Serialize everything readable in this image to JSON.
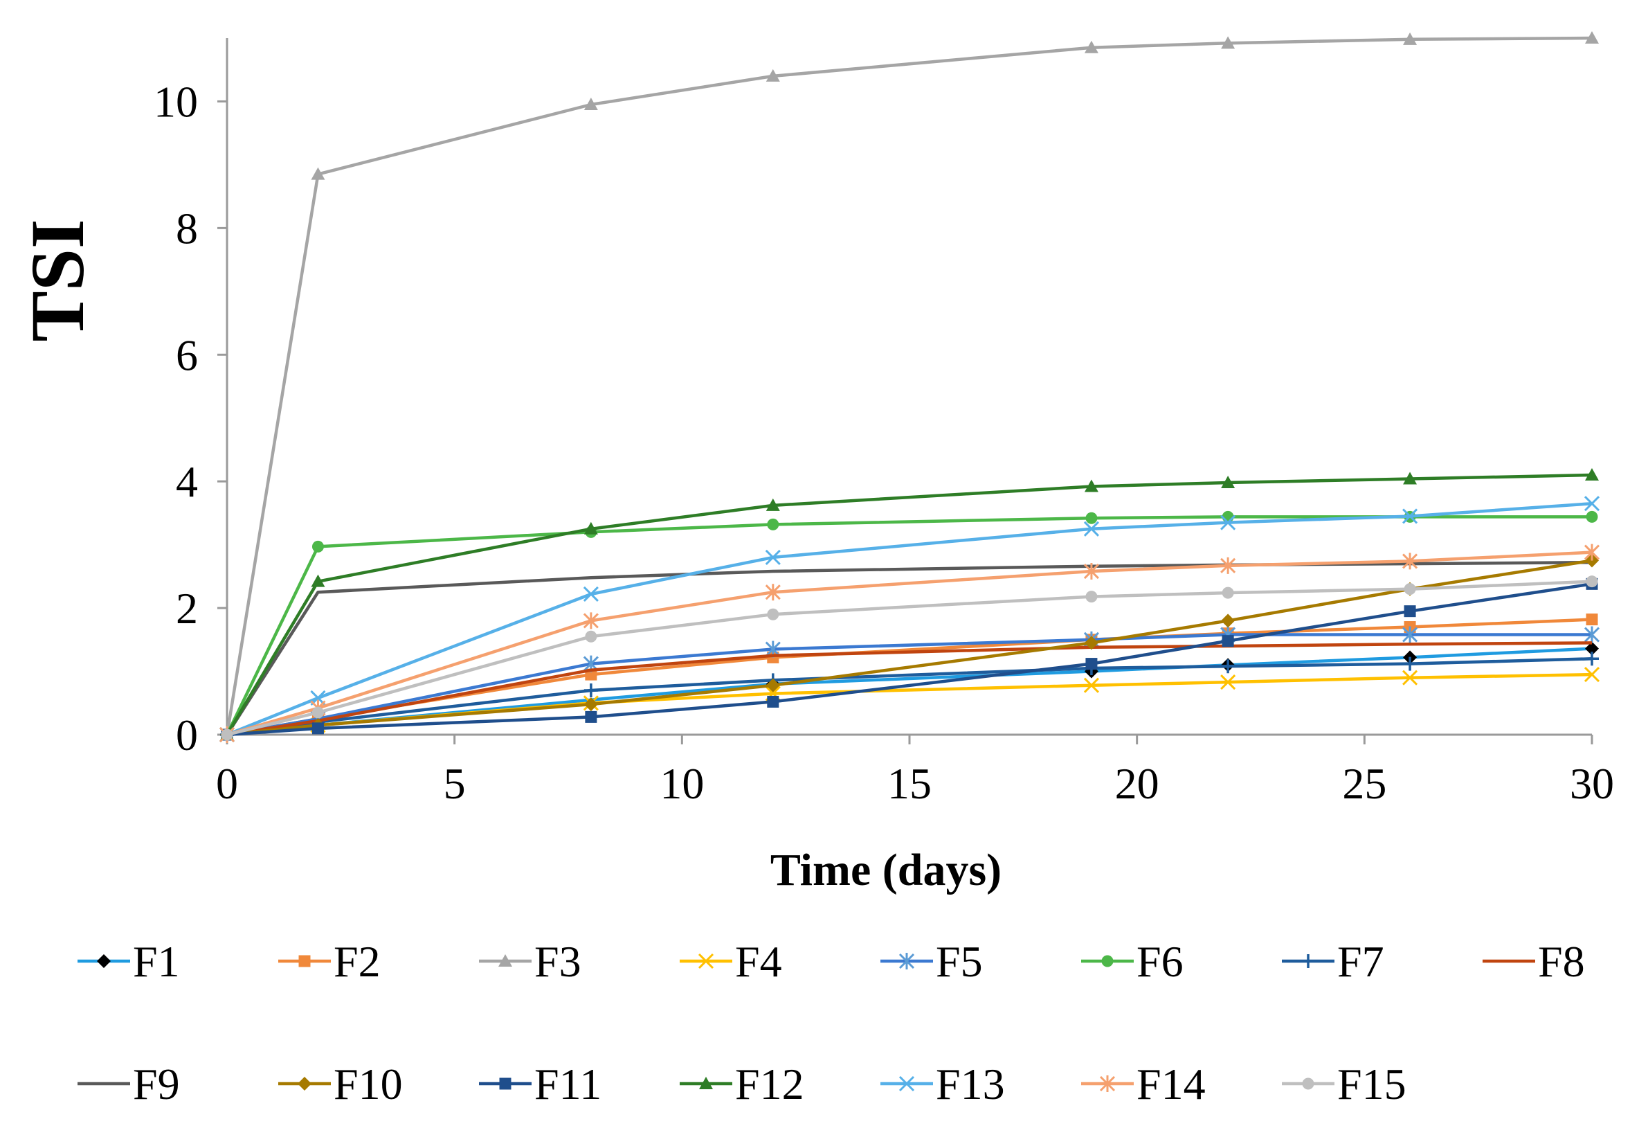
{
  "chart_data": {
    "type": "line",
    "xlabel": "Time (days)",
    "ylabel": "TSI",
    "xlim": [
      0,
      30
    ],
    "ylim": [
      0,
      11
    ],
    "xticks": [
      0,
      5,
      10,
      15,
      20,
      25,
      30
    ],
    "yticks": [
      0,
      2,
      4,
      6,
      8,
      10
    ],
    "x": [
      0,
      2,
      8,
      12,
      19,
      22,
      26,
      30
    ],
    "legend_position": "bottom",
    "grid": false,
    "series": [
      {
        "name": "F1",
        "color": "#1f9be0",
        "marker": "diamond",
        "marker_color": "#000000",
        "marker_at": [
          3,
          4,
          5,
          6,
          7
        ],
        "values": [
          0,
          0.15,
          0.55,
          0.8,
          1.0,
          1.1,
          1.22,
          1.36
        ]
      },
      {
        "name": "F2",
        "color": "#f0883a",
        "marker": "square",
        "marker_color": "#f0883a",
        "values": [
          0,
          0.25,
          0.95,
          1.22,
          1.5,
          1.6,
          1.7,
          1.82
        ]
      },
      {
        "name": "F3",
        "color": "#a5a5a5",
        "marker": "triangle",
        "marker_color": "#a5a5a5",
        "values": [
          0,
          8.85,
          9.95,
          10.4,
          10.85,
          10.92,
          10.98,
          11.0
        ]
      },
      {
        "name": "F4",
        "color": "#ffc000",
        "marker": "x",
        "marker_color": "#ffc000",
        "values": [
          0,
          0.15,
          0.5,
          0.65,
          0.78,
          0.83,
          0.9,
          0.95
        ]
      },
      {
        "name": "F5",
        "color": "#3b79d1",
        "marker": "star",
        "marker_color": "#5b9bd5",
        "values": [
          0,
          0.25,
          1.12,
          1.35,
          1.5,
          1.58,
          1.58,
          1.58
        ]
      },
      {
        "name": "F6",
        "color": "#4cb748",
        "marker": "circle",
        "marker_color": "#4cb748",
        "values": [
          0,
          2.97,
          3.2,
          3.32,
          3.42,
          3.44,
          3.44,
          3.44
        ]
      },
      {
        "name": "F7",
        "color": "#1e5c9c",
        "marker": "plus",
        "marker_color": "#1e5c9c",
        "values": [
          0,
          0.2,
          0.7,
          0.86,
          1.05,
          1.08,
          1.12,
          1.2
        ]
      },
      {
        "name": "F8",
        "color": "#c0440f",
        "marker": "none",
        "marker_color": "#c0440f",
        "values": [
          0,
          0.22,
          1.02,
          1.25,
          1.38,
          1.4,
          1.43,
          1.45
        ]
      },
      {
        "name": "F9",
        "color": "#595959",
        "marker": "none",
        "marker_color": "#595959",
        "values": [
          0,
          2.25,
          2.48,
          2.58,
          2.66,
          2.68,
          2.7,
          2.72
        ]
      },
      {
        "name": "F10",
        "color": "#a67a00",
        "marker": "diamond",
        "marker_color": "#a67a00",
        "values": [
          0,
          0.15,
          0.48,
          0.78,
          1.45,
          1.8,
          2.3,
          2.75
        ]
      },
      {
        "name": "F11",
        "color": "#1f4e8c",
        "marker": "square",
        "marker_color": "#1f4e8c",
        "values": [
          0,
          0.1,
          0.28,
          0.52,
          1.12,
          1.48,
          1.95,
          2.38
        ]
      },
      {
        "name": "F12",
        "color": "#2e7d26",
        "marker": "triangle",
        "marker_color": "#2e7d26",
        "values": [
          0,
          2.42,
          3.25,
          3.62,
          3.92,
          3.98,
          4.04,
          4.1
        ]
      },
      {
        "name": "F13",
        "color": "#56b0e8",
        "marker": "x",
        "marker_color": "#56b0e8",
        "values": [
          0,
          0.58,
          2.22,
          2.8,
          3.25,
          3.35,
          3.45,
          3.65
        ]
      },
      {
        "name": "F14",
        "color": "#f5a06e",
        "marker": "star",
        "marker_color": "#f5a06e",
        "values": [
          0,
          0.42,
          1.8,
          2.25,
          2.58,
          2.67,
          2.74,
          2.88
        ]
      },
      {
        "name": "F15",
        "color": "#bfbfbf",
        "marker": "circle",
        "marker_color": "#bfbfbf",
        "values": [
          0,
          0.35,
          1.55,
          1.9,
          2.18,
          2.24,
          2.3,
          2.42
        ]
      }
    ]
  }
}
